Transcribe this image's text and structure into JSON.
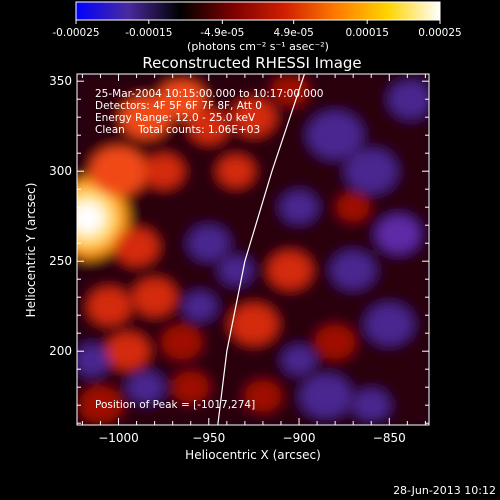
{
  "colorbar": {
    "tick_labels": [
      "-0.00025",
      "-0.00015",
      "-4.9e-05",
      "4.9e-05",
      "0.00015",
      "0.00025"
    ],
    "tick_values": [
      -0.00025,
      -0.00015,
      -4.9e-05,
      4.9e-05,
      0.00015,
      0.00025
    ],
    "range": [
      -0.00025,
      0.00025
    ],
    "units": "(photons cm⁻² s⁻¹ asec⁻²)",
    "stops": [
      "#0000ff",
      "#4a2aa0",
      "#000000",
      "#7a0000",
      "#d01e00",
      "#ff7a00",
      "#ffd400",
      "#ffffff"
    ]
  },
  "chart_data": {
    "type": "heatmap",
    "title": "Reconstructed RHESSI Image",
    "xlabel": "Heliocentric X (arcsec)",
    "ylabel": "Heliocentric Y (arcsec)",
    "xlim": [
      -1023,
      -828
    ],
    "ylim": [
      159,
      354
    ],
    "x_ticks": [
      -1000,
      -950,
      -900,
      -850
    ],
    "x_tick_labels": [
      "−1000",
      "−950",
      "−900",
      "−850"
    ],
    "y_ticks": [
      200,
      250,
      300,
      350
    ],
    "y_tick_labels": [
      "200",
      "250",
      "300",
      "350"
    ],
    "annotations": [
      "25-Mar-2004 10:15:00.000 to 10:17:00.000",
      "Detectors: 4F 5F 6F 7F 8F, Att 0",
      "Energy Range: 12.0 - 25.0 keV",
      "Clean    Total counts: 1.06E+03"
    ],
    "peak_label": "Position of Peak = [-1017,274]",
    "peak": [
      -1017,
      274
    ],
    "limb_curve": [
      [
        -945,
        159
      ],
      [
        -940,
        200
      ],
      [
        -930,
        250
      ],
      [
        -915,
        300
      ],
      [
        -897,
        354
      ]
    ],
    "blobs": [
      {
        "x": -1017,
        "y": 274,
        "r": 15,
        "v": 1.0
      },
      {
        "x": -1000,
        "y": 300,
        "r": 16,
        "v": 0.55
      },
      {
        "x": -990,
        "y": 258,
        "r": 12,
        "v": 0.45
      },
      {
        "x": -985,
        "y": 330,
        "r": 14,
        "v": 0.6
      },
      {
        "x": -975,
        "y": 300,
        "r": 11,
        "v": 0.45
      },
      {
        "x": -965,
        "y": 340,
        "r": 13,
        "v": 0.55
      },
      {
        "x": -950,
        "y": 325,
        "r": 11,
        "v": 0.5
      },
      {
        "x": -935,
        "y": 300,
        "r": 10,
        "v": 0.4
      },
      {
        "x": -925,
        "y": 330,
        "r": 12,
        "v": 0.5
      },
      {
        "x": -905,
        "y": 345,
        "r": 10,
        "v": 0.35
      },
      {
        "x": -1005,
        "y": 225,
        "r": 12,
        "v": 0.45
      },
      {
        "x": -980,
        "y": 230,
        "r": 12,
        "v": 0.4
      },
      {
        "x": -995,
        "y": 200,
        "r": 12,
        "v": 0.4
      },
      {
        "x": -965,
        "y": 205,
        "r": 11,
        "v": 0.35
      },
      {
        "x": -925,
        "y": 215,
        "r": 13,
        "v": 0.45
      },
      {
        "x": -905,
        "y": 245,
        "r": 12,
        "v": 0.4
      },
      {
        "x": -880,
        "y": 205,
        "r": 11,
        "v": 0.35
      },
      {
        "x": -960,
        "y": 180,
        "r": 10,
        "v": 0.35
      },
      {
        "x": -920,
        "y": 175,
        "r": 10,
        "v": 0.3
      },
      {
        "x": -870,
        "y": 280,
        "r": 9,
        "v": 0.25
      },
      {
        "x": -1010,
        "y": 170,
        "r": 12,
        "v": 0.35
      },
      {
        "x": -950,
        "y": 260,
        "r": 11,
        "v": -0.55
      },
      {
        "x": -935,
        "y": 245,
        "r": 9,
        "v": -0.6
      },
      {
        "x": -880,
        "y": 320,
        "r": 15,
        "v": -0.6
      },
      {
        "x": -860,
        "y": 300,
        "r": 14,
        "v": -0.55
      },
      {
        "x": -845,
        "y": 265,
        "r": 12,
        "v": -0.7
      },
      {
        "x": -870,
        "y": 245,
        "r": 12,
        "v": -0.5
      },
      {
        "x": -850,
        "y": 215,
        "r": 13,
        "v": -0.55
      },
      {
        "x": -885,
        "y": 175,
        "r": 14,
        "v": -0.55
      },
      {
        "x": -860,
        "y": 170,
        "r": 10,
        "v": -0.6
      },
      {
        "x": -1015,
        "y": 195,
        "r": 10,
        "v": -0.45
      },
      {
        "x": -985,
        "y": 180,
        "r": 10,
        "v": -0.4
      },
      {
        "x": -955,
        "y": 225,
        "r": 9,
        "v": -0.45
      },
      {
        "x": -900,
        "y": 280,
        "r": 10,
        "v": -0.45
      },
      {
        "x": -900,
        "y": 195,
        "r": 9,
        "v": -0.4
      },
      {
        "x": -838,
        "y": 340,
        "r": 12,
        "v": -0.55
      }
    ]
  },
  "footer": {
    "date": "28-Jun-2013 10:12"
  }
}
